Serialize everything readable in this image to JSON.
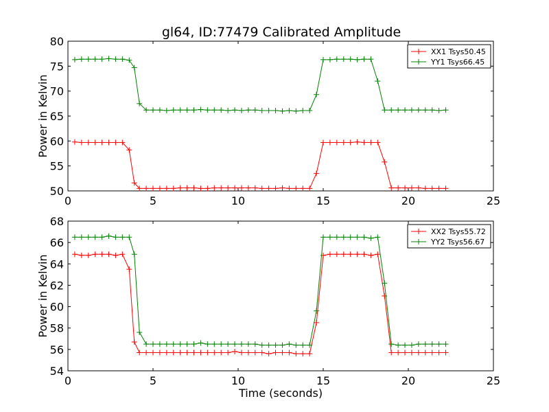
{
  "figure": {
    "title": "gl64, ID:77479 Calibrated Amplitude"
  },
  "chart_data": [
    {
      "type": "line",
      "title": "gl64, ID:77479 Calibrated Amplitude",
      "xlabel": "",
      "ylabel": "Power in Kelvin",
      "xlim": [
        0,
        25
      ],
      "ylim": [
        50,
        80
      ],
      "xticks": [
        0,
        5,
        10,
        15,
        20,
        25
      ],
      "yticks": [
        50,
        55,
        60,
        65,
        70,
        75,
        80
      ],
      "grid": false,
      "legend_position": "top-right",
      "x": [
        0.4,
        0.8,
        1.2,
        1.6,
        2.0,
        2.4,
        2.8,
        3.2,
        3.6,
        3.9,
        4.2,
        4.6,
        5.0,
        5.4,
        5.8,
        6.2,
        6.6,
        7.0,
        7.4,
        7.8,
        8.2,
        8.6,
        9.0,
        9.4,
        9.8,
        10.2,
        10.6,
        11.0,
        11.4,
        11.8,
        12.2,
        12.6,
        13.0,
        13.4,
        13.8,
        14.2,
        14.6,
        15.0,
        15.4,
        15.8,
        16.2,
        16.6,
        17.0,
        17.4,
        17.8,
        18.2,
        18.6,
        19.0,
        19.4,
        19.8,
        20.2,
        20.6,
        21.0,
        21.4,
        21.8,
        22.2
      ],
      "series": [
        {
          "name": "XX1 Tsys50.45",
          "color": "#ff0000",
          "values": [
            59.8,
            59.7,
            59.7,
            59.7,
            59.7,
            59.7,
            59.7,
            59.7,
            58.2,
            51.6,
            50.5,
            50.5,
            50.5,
            50.5,
            50.5,
            50.5,
            50.6,
            50.6,
            50.6,
            50.5,
            50.5,
            50.6,
            50.6,
            50.6,
            50.6,
            50.6,
            50.6,
            50.6,
            50.5,
            50.5,
            50.5,
            50.6,
            50.5,
            50.5,
            50.5,
            50.5,
            53.5,
            59.7,
            59.7,
            59.7,
            59.7,
            59.7,
            59.8,
            59.7,
            59.7,
            59.7,
            55.8,
            50.6,
            50.6,
            50.6,
            50.6,
            50.6,
            50.5,
            50.5,
            50.5,
            50.5
          ]
        },
        {
          "name": "YY1 Tsys66.45",
          "color": "#008000",
          "values": [
            76.3,
            76.4,
            76.4,
            76.4,
            76.4,
            76.5,
            76.4,
            76.4,
            76.2,
            74.7,
            67.5,
            66.2,
            66.2,
            66.2,
            66.1,
            66.2,
            66.2,
            66.2,
            66.2,
            66.3,
            66.2,
            66.2,
            66.2,
            66.1,
            66.2,
            66.1,
            66.2,
            66.2,
            66.1,
            66.1,
            66.1,
            66.0,
            66.1,
            66.0,
            66.1,
            66.1,
            69.3,
            76.3,
            76.3,
            76.4,
            76.4,
            76.4,
            76.3,
            76.4,
            76.4,
            72.0,
            66.2,
            66.2,
            66.2,
            66.2,
            66.2,
            66.2,
            66.2,
            66.2,
            66.1,
            66.2
          ]
        }
      ]
    },
    {
      "type": "line",
      "title": "",
      "xlabel": "Time (seconds)",
      "ylabel": "Power in Kelvin",
      "xlim": [
        0,
        25
      ],
      "ylim": [
        54,
        68
      ],
      "xticks": [
        0,
        5,
        10,
        15,
        20,
        25
      ],
      "yticks": [
        54,
        56,
        58,
        60,
        62,
        64,
        66,
        68
      ],
      "grid": false,
      "legend_position": "top-right",
      "x": [
        0.4,
        0.8,
        1.2,
        1.6,
        2.0,
        2.4,
        2.8,
        3.2,
        3.6,
        3.9,
        4.2,
        4.6,
        5.0,
        5.4,
        5.8,
        6.2,
        6.6,
        7.0,
        7.4,
        7.8,
        8.2,
        8.6,
        9.0,
        9.4,
        9.8,
        10.2,
        10.6,
        11.0,
        11.4,
        11.8,
        12.2,
        12.6,
        13.0,
        13.4,
        13.8,
        14.2,
        14.6,
        15.0,
        15.4,
        15.8,
        16.2,
        16.6,
        17.0,
        17.4,
        17.8,
        18.2,
        18.6,
        19.0,
        19.4,
        19.8,
        20.2,
        20.6,
        21.0,
        21.4,
        21.8,
        22.2
      ],
      "series": [
        {
          "name": "XX2 Tsys55.72",
          "color": "#ff0000",
          "values": [
            64.9,
            64.8,
            64.8,
            64.9,
            64.9,
            64.9,
            64.8,
            64.9,
            63.5,
            56.7,
            55.7,
            55.7,
            55.7,
            55.7,
            55.7,
            55.7,
            55.7,
            55.7,
            55.7,
            55.7,
            55.7,
            55.7,
            55.7,
            55.7,
            55.8,
            55.7,
            55.7,
            55.7,
            55.7,
            55.6,
            55.7,
            55.7,
            55.7,
            55.6,
            55.6,
            55.6,
            58.5,
            64.8,
            64.9,
            64.9,
            64.9,
            64.9,
            64.9,
            64.9,
            64.8,
            64.9,
            61.0,
            55.7,
            55.7,
            55.7,
            55.7,
            55.7,
            55.7,
            55.7,
            55.7,
            55.7
          ]
        },
        {
          "name": "YY2 Tsys56.67",
          "color": "#008000",
          "values": [
            66.5,
            66.5,
            66.5,
            66.5,
            66.5,
            66.6,
            66.5,
            66.5,
            66.5,
            64.9,
            57.6,
            56.5,
            56.5,
            56.5,
            56.5,
            56.5,
            56.5,
            56.5,
            56.5,
            56.6,
            56.5,
            56.5,
            56.5,
            56.5,
            56.5,
            56.5,
            56.5,
            56.5,
            56.4,
            56.4,
            56.4,
            56.4,
            56.5,
            56.4,
            56.4,
            56.4,
            59.6,
            66.5,
            66.5,
            66.5,
            66.5,
            66.5,
            66.5,
            66.5,
            66.4,
            66.5,
            62.2,
            56.5,
            56.4,
            56.4,
            56.4,
            56.5,
            56.5,
            56.5,
            56.5,
            56.5
          ]
        }
      ]
    }
  ]
}
